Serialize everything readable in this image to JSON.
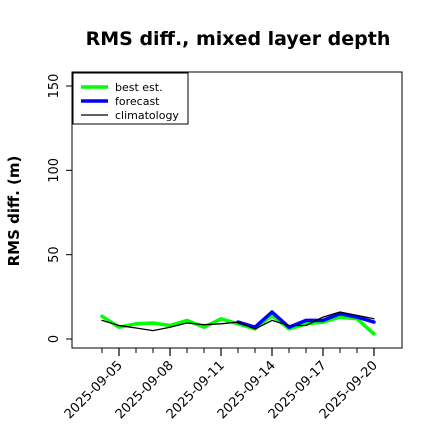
{
  "chart_data": {
    "type": "line",
    "title": "RMS diff., mixed layer depth",
    "xlabel": "",
    "ylabel": "RMS diff. (m)",
    "x": [
      "2025-09-04",
      "2025-09-05",
      "2025-09-06",
      "2025-09-07",
      "2025-09-08",
      "2025-09-09",
      "2025-09-10",
      "2025-09-11",
      "2025-09-12",
      "2025-09-13",
      "2025-09-14",
      "2025-09-15",
      "2025-09-16",
      "2025-09-17",
      "2025-09-18",
      "2025-09-19",
      "2025-09-20"
    ],
    "xticks": [
      "2025-09-05",
      "2025-09-08",
      "2025-09-11",
      "2025-09-14",
      "2025-09-17",
      "2025-09-20"
    ],
    "xtick_colors": [
      "#000000",
      "#000000",
      "#228B22",
      "#000000",
      "#000000",
      "#000000"
    ],
    "ylim": [
      0,
      155
    ],
    "yticks": [
      0,
      50,
      100,
      150
    ],
    "grid": false,
    "legend": "top-left",
    "series": [
      {
        "name": "best est.",
        "color": "#00ff00",
        "width": 3.5,
        "values": [
          13.5,
          7,
          9,
          9.5,
          8,
          11,
          7,
          12,
          9,
          6,
          14,
          6,
          9,
          10,
          13,
          12,
          3
        ]
      },
      {
        "name": "forecast",
        "color": "#0000ff",
        "width": 3.5,
        "values": [
          null,
          null,
          null,
          null,
          null,
          null,
          null,
          null,
          10,
          7,
          16,
          7,
          11,
          11,
          15,
          13,
          10
        ]
      },
      {
        "name": "climatology",
        "color": "#000000",
        "width": 1.3,
        "values": [
          11,
          8,
          6.5,
          5,
          7,
          9.5,
          8.5,
          9,
          10,
          6,
          11,
          8,
          8,
          13,
          16,
          14,
          12
        ]
      }
    ]
  }
}
